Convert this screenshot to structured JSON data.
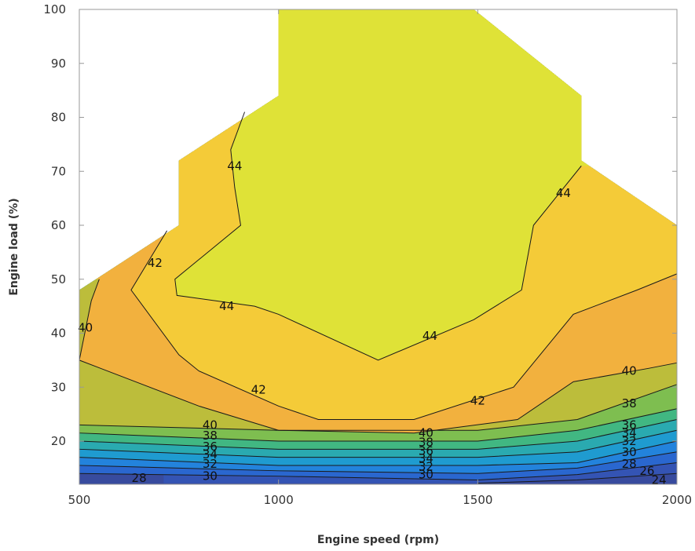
{
  "chart_data": {
    "type": "contour",
    "xlabel": "Engine speed (rpm)",
    "ylabel": "Engine load (%)",
    "xlim": [
      500,
      2000
    ],
    "ylim": [
      12,
      100
    ],
    "x_ticks": [
      500,
      1000,
      1500,
      2000
    ],
    "y_ticks": [
      20,
      30,
      40,
      50,
      60,
      70,
      80,
      90,
      100
    ],
    "grid": false,
    "domain_boundary": [
      [
        500,
        12
      ],
      [
        2000,
        12
      ],
      [
        2000,
        60
      ],
      [
        1760,
        72
      ],
      [
        1760,
        84
      ],
      [
        1490,
        100
      ],
      [
        1000,
        100
      ],
      [
        1000,
        84
      ],
      [
        750,
        72
      ],
      [
        750,
        60
      ],
      [
        500,
        48
      ]
    ],
    "filled_levels": [
      {
        "from": 44,
        "color": "#dfe237"
      },
      {
        "from": 42,
        "color": "#f4cb38"
      },
      {
        "from": 40,
        "color": "#f2b13e"
      },
      {
        "from": 38,
        "color": "#bcbd3b"
      },
      {
        "from": 36,
        "color": "#7ebe50"
      },
      {
        "from": 34,
        "color": "#41b782"
      },
      {
        "from": 32,
        "color": "#2aaab0"
      },
      {
        "from": 30,
        "color": "#1f9bd0"
      },
      {
        "from": 28,
        "color": "#2383dc"
      },
      {
        "from": 26,
        "color": "#2a67cf"
      },
      {
        "from": 24,
        "color": "#3454b4"
      },
      {
        "from": 0,
        "color": "#384b9e"
      }
    ],
    "contours": [
      {
        "level": 44,
        "points": [
          [
            915,
            81
          ],
          [
            880,
            74
          ],
          [
            890,
            67
          ],
          [
            905,
            60
          ],
          [
            740,
            50
          ],
          [
            745,
            47
          ],
          [
            940,
            45
          ],
          [
            1000,
            43.5
          ],
          [
            1250,
            35
          ],
          [
            1490,
            42.5
          ],
          [
            1610,
            48
          ],
          [
            1640,
            60
          ],
          [
            1760,
            71
          ]
        ],
        "labels": [
          {
            "text": "44",
            "at": [
              890,
              71
            ]
          },
          {
            "text": "44",
            "at": [
              870,
              45
            ]
          },
          {
            "text": "44",
            "at": [
              1380,
              39.5
            ]
          },
          {
            "text": "44",
            "at": [
              1715,
              66
            ]
          }
        ]
      },
      {
        "level": 42,
        "points": [
          [
            720,
            59
          ],
          [
            630,
            48
          ],
          [
            750,
            36
          ],
          [
            800,
            33
          ],
          [
            1000,
            26.5
          ],
          [
            1100,
            24
          ],
          [
            1340,
            24
          ],
          [
            1590,
            30
          ],
          [
            1740,
            43.5
          ],
          [
            1900,
            48
          ],
          [
            2000,
            51
          ]
        ],
        "labels": [
          {
            "text": "42",
            "at": [
              690,
              53
            ]
          },
          {
            "text": "42",
            "at": [
              950,
              29.5
            ]
          },
          {
            "text": "42",
            "at": [
              1500,
              27.5
            ]
          }
        ]
      },
      {
        "level": 40,
        "points": [
          [
            550,
            50
          ],
          [
            530,
            46
          ],
          [
            500,
            35
          ],
          [
            800,
            26.5
          ],
          [
            1000,
            22
          ],
          [
            1340,
            21.5
          ],
          [
            1600,
            24
          ],
          [
            1740,
            31
          ],
          [
            1930,
            33.5
          ],
          [
            2000,
            34.5
          ]
        ],
        "labels": [
          {
            "text": "40",
            "at": [
              515,
              41
            ]
          },
          {
            "text": "40",
            "at": [
              828,
              23
            ]
          },
          {
            "text": "40",
            "at": [
              1370,
              21.5
            ]
          },
          {
            "text": "40",
            "at": [
              1880,
              33
            ]
          }
        ]
      },
      {
        "level": 38,
        "points": [
          [
            500,
            23
          ],
          [
            1000,
            22
          ],
          [
            1500,
            22
          ],
          [
            1750,
            24
          ],
          [
            2000,
            30.5
          ]
        ],
        "labels": [
          {
            "text": "38",
            "at": [
              828,
              21
            ]
          },
          {
            "text": "38",
            "at": [
              1370,
              19.8
            ]
          },
          {
            "text": "38",
            "at": [
              1880,
              27
            ]
          }
        ]
      },
      {
        "level": 36,
        "points": [
          [
            500,
            21.5
          ],
          [
            1000,
            20
          ],
          [
            1500,
            20
          ],
          [
            1750,
            22
          ],
          [
            2000,
            26
          ]
        ],
        "labels": [
          {
            "text": "36",
            "at": [
              828,
              19
            ]
          },
          {
            "text": "36",
            "at": [
              1370,
              18.2
            ]
          },
          {
            "text": "36",
            "at": [
              1880,
              23
            ]
          }
        ]
      },
      {
        "level": 34,
        "points": [
          [
            500,
            20
          ],
          [
            1000,
            18.5
          ],
          [
            1500,
            18.5
          ],
          [
            1750,
            20
          ],
          [
            2000,
            24
          ]
        ],
        "labels": [
          {
            "text": "34",
            "at": [
              828,
              17.5
            ]
          },
          {
            "text": "34",
            "at": [
              1370,
              16.8
            ]
          },
          {
            "text": "34",
            "at": [
              1880,
              21.5
            ]
          }
        ]
      },
      {
        "level": 32,
        "points": [
          [
            500,
            18.5
          ],
          [
            1000,
            17
          ],
          [
            1500,
            17
          ],
          [
            1750,
            18
          ],
          [
            2000,
            22
          ]
        ],
        "labels": [
          {
            "text": "32",
            "at": [
              828,
              15.8
            ]
          },
          {
            "text": "32",
            "at": [
              1370,
              15.3
            ]
          },
          {
            "text": "32",
            "at": [
              1880,
              20
            ]
          }
        ]
      },
      {
        "level": 30,
        "points": [
          [
            500,
            17
          ],
          [
            1000,
            15.5
          ],
          [
            1500,
            15.5
          ],
          [
            1750,
            16
          ],
          [
            2000,
            20
          ]
        ],
        "labels": [
          {
            "text": "30",
            "at": [
              828,
              13.5
            ]
          },
          {
            "text": "30",
            "at": [
              1370,
              13.8
            ]
          },
          {
            "text": "30",
            "at": [
              1880,
              18
            ]
          }
        ]
      },
      {
        "level": 28,
        "points": [
          [
            500,
            15.5
          ],
          [
            1000,
            14.5
          ],
          [
            1500,
            14
          ],
          [
            1750,
            15
          ],
          [
            2000,
            18
          ]
        ],
        "labels": [
          {
            "text": "28",
            "at": [
              650,
              13.2
            ]
          },
          {
            "text": "28",
            "at": [
              1880,
              15.8
            ]
          }
        ]
      },
      {
        "level": 26,
        "points": [
          [
            500,
            14
          ],
          [
            1000,
            13.5
          ],
          [
            1500,
            12.8
          ],
          [
            1750,
            13.8
          ],
          [
            2000,
            16
          ]
        ],
        "labels": [
          {
            "text": "26",
            "at": [
              1925,
              14.5
            ]
          }
        ]
      },
      {
        "level": 24,
        "points": [
          [
            1500,
            12.2
          ],
          [
            1750,
            12.8
          ],
          [
            2000,
            14
          ]
        ],
        "labels": [
          {
            "text": "24",
            "at": [
              1955,
              12.8
            ]
          }
        ]
      }
    ]
  }
}
